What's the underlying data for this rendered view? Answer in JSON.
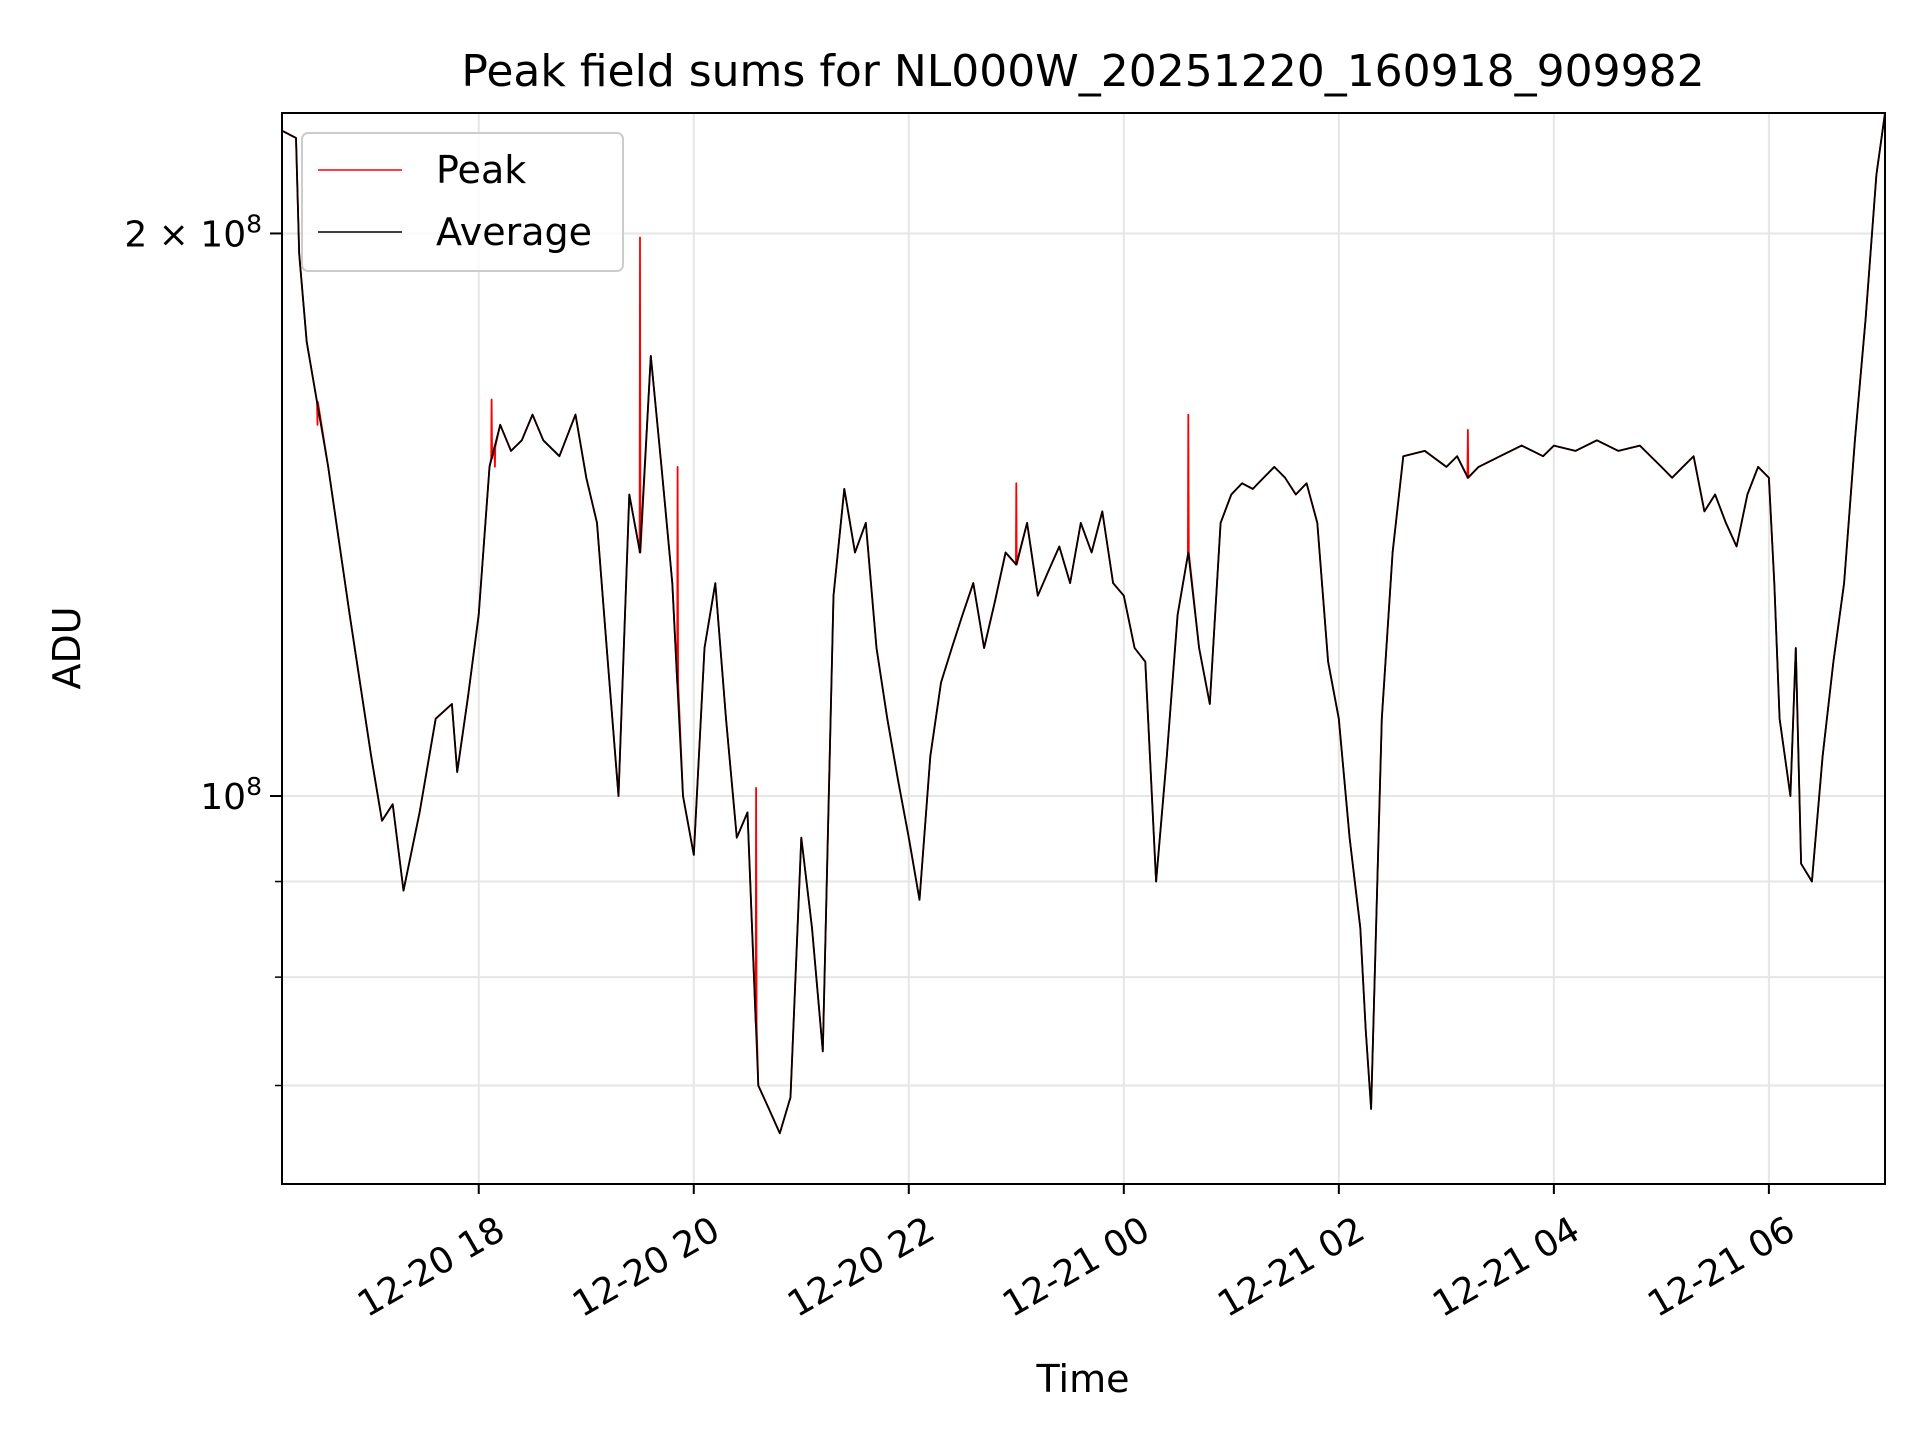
{
  "chart_data": {
    "type": "line",
    "title": "Peak field sums for NL000W_20251220_160918_909982",
    "xlabel": "Time",
    "ylabel": "ADU",
    "yscale": "log",
    "ylim": [
      62000000,
      232000000
    ],
    "xlim_hours": [
      16.17,
      31.08
    ],
    "grid": true,
    "legend_position": "upper-left",
    "x_ticks": [
      {
        "hour": 18,
        "label": "12-20 18"
      },
      {
        "hour": 20,
        "label": "12-20 20"
      },
      {
        "hour": 22,
        "label": "12-20 22"
      },
      {
        "hour": 24,
        "label": "12-21 00"
      },
      {
        "hour": 26,
        "label": "12-21 02"
      },
      {
        "hour": 28,
        "label": "12-21 04"
      },
      {
        "hour": 30,
        "label": "12-21 06"
      }
    ],
    "y_major_ticks": [
      {
        "value": 100000000,
        "base": "10",
        "exp": "8",
        "mult": ""
      },
      {
        "value": 200000000,
        "base": "10",
        "exp": "8",
        "mult": "2 × "
      }
    ],
    "y_minor_ticks": [
      70000000,
      80000000,
      90000000
    ],
    "series": [
      {
        "name": "Peak",
        "color": "#ff0000",
        "spikes": [
          {
            "hour": 16.5,
            "value": 158000000
          },
          {
            "hour": 18.12,
            "value": 163000000
          },
          {
            "hour": 18.15,
            "value": 150000000
          },
          {
            "hour": 19.5,
            "value": 199000000
          },
          {
            "hour": 19.85,
            "value": 150000000
          },
          {
            "hour": 20.58,
            "value": 101000000
          },
          {
            "hour": 23.0,
            "value": 147000000
          },
          {
            "hour": 24.6,
            "value": 160000000
          },
          {
            "hour": 27.2,
            "value": 157000000
          }
        ]
      },
      {
        "name": "Average",
        "color": "#000000",
        "points": [
          [
            16.17,
            227000000
          ],
          [
            16.3,
            225000000
          ],
          [
            16.33,
            195000000
          ],
          [
            16.4,
            175000000
          ],
          [
            16.6,
            150000000
          ],
          [
            16.8,
            125000000
          ],
          [
            17.0,
            105000000
          ],
          [
            17.1,
            97000000
          ],
          [
            17.2,
            99000000
          ],
          [
            17.3,
            89000000
          ],
          [
            17.45,
            98000000
          ],
          [
            17.6,
            110000000
          ],
          [
            17.75,
            112000000
          ],
          [
            17.8,
            103000000
          ],
          [
            17.9,
            113000000
          ],
          [
            18.0,
            125000000
          ],
          [
            18.1,
            150000000
          ],
          [
            18.2,
            158000000
          ],
          [
            18.3,
            153000000
          ],
          [
            18.4,
            155000000
          ],
          [
            18.5,
            160000000
          ],
          [
            18.6,
            155000000
          ],
          [
            18.75,
            152000000
          ],
          [
            18.9,
            160000000
          ],
          [
            19.0,
            148000000
          ],
          [
            19.1,
            140000000
          ],
          [
            19.2,
            118000000
          ],
          [
            19.3,
            100000000
          ],
          [
            19.4,
            145000000
          ],
          [
            19.5,
            135000000
          ],
          [
            19.6,
            172000000
          ],
          [
            19.7,
            150000000
          ],
          [
            19.8,
            130000000
          ],
          [
            19.9,
            100000000
          ],
          [
            20.0,
            93000000
          ],
          [
            20.1,
            120000000
          ],
          [
            20.2,
            130000000
          ],
          [
            20.3,
            110000000
          ],
          [
            20.4,
            95000000
          ],
          [
            20.5,
            98000000
          ],
          [
            20.6,
            70000000
          ],
          [
            20.7,
            68000000
          ],
          [
            20.8,
            66000000
          ],
          [
            20.9,
            69000000
          ],
          [
            21.0,
            95000000
          ],
          [
            21.1,
            85000000
          ],
          [
            21.2,
            73000000
          ],
          [
            21.3,
            128000000
          ],
          [
            21.4,
            146000000
          ],
          [
            21.5,
            135000000
          ],
          [
            21.6,
            140000000
          ],
          [
            21.7,
            120000000
          ],
          [
            21.8,
            110000000
          ],
          [
            21.9,
            102000000
          ],
          [
            22.0,
            95000000
          ],
          [
            22.1,
            88000000
          ],
          [
            22.2,
            105000000
          ],
          [
            22.3,
            115000000
          ],
          [
            22.4,
            120000000
          ],
          [
            22.5,
            125000000
          ],
          [
            22.6,
            130000000
          ],
          [
            22.7,
            120000000
          ],
          [
            22.8,
            127000000
          ],
          [
            22.9,
            135000000
          ],
          [
            23.0,
            133000000
          ],
          [
            23.1,
            140000000
          ],
          [
            23.2,
            128000000
          ],
          [
            23.3,
            132000000
          ],
          [
            23.4,
            136000000
          ],
          [
            23.5,
            130000000
          ],
          [
            23.6,
            140000000
          ],
          [
            23.7,
            135000000
          ],
          [
            23.8,
            142000000
          ],
          [
            23.9,
            130000000
          ],
          [
            24.0,
            128000000
          ],
          [
            24.1,
            120000000
          ],
          [
            24.2,
            118000000
          ],
          [
            24.3,
            90000000
          ],
          [
            24.4,
            105000000
          ],
          [
            24.5,
            125000000
          ],
          [
            24.6,
            135000000
          ],
          [
            24.7,
            120000000
          ],
          [
            24.8,
            112000000
          ],
          [
            24.9,
            140000000
          ],
          [
            25.0,
            145000000
          ],
          [
            25.1,
            147000000
          ],
          [
            25.2,
            146000000
          ],
          [
            25.3,
            148000000
          ],
          [
            25.4,
            150000000
          ],
          [
            25.5,
            148000000
          ],
          [
            25.6,
            145000000
          ],
          [
            25.7,
            147000000
          ],
          [
            25.8,
            140000000
          ],
          [
            25.9,
            118000000
          ],
          [
            26.0,
            110000000
          ],
          [
            26.1,
            95000000
          ],
          [
            26.2,
            85000000
          ],
          [
            26.25,
            75000000
          ],
          [
            26.3,
            68000000
          ],
          [
            26.4,
            110000000
          ],
          [
            26.5,
            135000000
          ],
          [
            26.6,
            152000000
          ],
          [
            26.8,
            153000000
          ],
          [
            27.0,
            150000000
          ],
          [
            27.1,
            152000000
          ],
          [
            27.2,
            148000000
          ],
          [
            27.3,
            150000000
          ],
          [
            27.5,
            152000000
          ],
          [
            27.7,
            154000000
          ],
          [
            27.9,
            152000000
          ],
          [
            28.0,
            154000000
          ],
          [
            28.2,
            153000000
          ],
          [
            28.4,
            155000000
          ],
          [
            28.6,
            153000000
          ],
          [
            28.8,
            154000000
          ],
          [
            29.0,
            150000000
          ],
          [
            29.1,
            148000000
          ],
          [
            29.2,
            150000000
          ],
          [
            29.3,
            152000000
          ],
          [
            29.4,
            142000000
          ],
          [
            29.5,
            145000000
          ],
          [
            29.6,
            140000000
          ],
          [
            29.7,
            136000000
          ],
          [
            29.8,
            145000000
          ],
          [
            29.9,
            150000000
          ],
          [
            30.0,
            148000000
          ],
          [
            30.05,
            130000000
          ],
          [
            30.1,
            110000000
          ],
          [
            30.2,
            100000000
          ],
          [
            30.25,
            120000000
          ],
          [
            30.3,
            92000000
          ],
          [
            30.4,
            90000000
          ],
          [
            30.5,
            105000000
          ],
          [
            30.6,
            118000000
          ],
          [
            30.7,
            130000000
          ],
          [
            30.8,
            155000000
          ],
          [
            30.9,
            180000000
          ],
          [
            31.0,
            215000000
          ],
          [
            31.08,
            232000000
          ]
        ]
      }
    ]
  }
}
